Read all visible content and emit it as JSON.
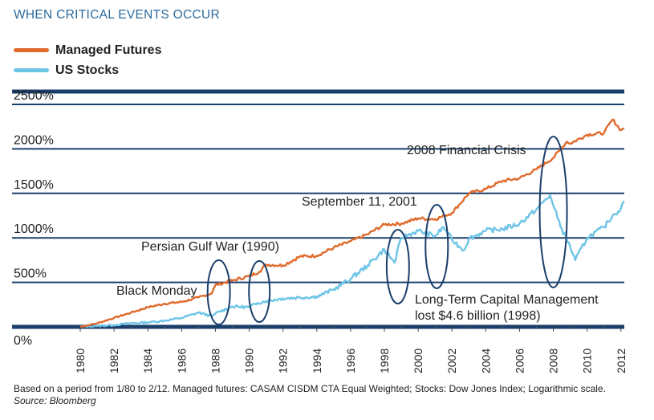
{
  "header": {
    "title": "WHEN CRITICAL EVENTS OCCUR"
  },
  "colors": {
    "managed_futures": "#e06a2c",
    "us_stocks": "#6ec5e6",
    "grid": "#1a3f6b",
    "annotation": "#1a3f6b"
  },
  "footnote": {
    "text": "Based on a period from 1/80 to 2/12. Managed futures: CASAM CISDM CTA Equal Weighted; Stocks: Dow Jones Index; Logarithmic scale.",
    "source": "Source: Bloomberg"
  },
  "chart_data": {
    "type": "line",
    "title": "WHEN CRITICAL EVENTS OCCUR",
    "xlabel": "",
    "ylabel": "",
    "xlim": [
      1980,
      2012.2
    ],
    "ylim": [
      0,
      2500
    ],
    "yticks": [
      "0%",
      "500%",
      "1000%",
      "1500%",
      "2000%",
      "2500%"
    ],
    "ytick_values": [
      0,
      500,
      1000,
      1500,
      2000,
      2500
    ],
    "xticks": [
      "1980",
      "1982",
      "1984",
      "1986",
      "1988",
      "1990",
      "1992",
      "1994",
      "1996",
      "1998",
      "2000",
      "2002",
      "2004",
      "2006",
      "2008",
      "2010",
      "2012"
    ],
    "xtick_values": [
      1980,
      1982,
      1984,
      1986,
      1988,
      1990,
      1992,
      1994,
      1996,
      1998,
      2000,
      2002,
      2004,
      2006,
      2008,
      2010,
      2012
    ],
    "grid": "horizontal",
    "legend": "top-left",
    "series": [
      {
        "name": "Managed Futures",
        "x": [
          1980,
          1981,
          1982,
          1983,
          1984,
          1985,
          1986,
          1987,
          1987.8,
          1988,
          1989,
          1990,
          1990.6,
          1991,
          1992,
          1993,
          1994,
          1995,
          1996,
          1997,
          1998,
          1999,
          2000,
          2001,
          2002,
          2003,
          2004,
          2005,
          2006,
          2007,
          2008,
          2008.8,
          2009,
          2010,
          2011,
          2011.5,
          2012,
          2012.2
        ],
        "values": [
          0,
          40,
          100,
          160,
          220,
          260,
          280,
          330,
          380,
          470,
          520,
          570,
          620,
          700,
          690,
          790,
          800,
          890,
          960,
          1040,
          1150,
          1160,
          1220,
          1210,
          1280,
          1500,
          1550,
          1640,
          1670,
          1770,
          1900,
          2080,
          2060,
          2160,
          2180,
          2330,
          2210,
          2230
        ]
      },
      {
        "name": "US Stocks",
        "x": [
          1980,
          1981,
          1982,
          1983,
          1984,
          1985,
          1986,
          1987,
          1987.8,
          1988,
          1989,
          1990,
          1990.5,
          1991,
          1992,
          1993,
          1994,
          1995,
          1996,
          1997,
          1998,
          1998.6,
          1999,
          2000,
          2001,
          2001.5,
          2002,
          2002.7,
          2003,
          2004,
          2005,
          2006,
          2007,
          2007.8,
          2008,
          2008.5,
          2009,
          2009.3,
          2010,
          2011,
          2011.5,
          2012,
          2012.2
        ],
        "values": [
          0,
          10,
          20,
          40,
          50,
          70,
          100,
          160,
          120,
          150,
          230,
          220,
          270,
          290,
          320,
          330,
          340,
          420,
          540,
          690,
          870,
          720,
          1000,
          1080,
          1020,
          1120,
          980,
          860,
          990,
          1080,
          1100,
          1160,
          1320,
          1480,
          1360,
          1100,
          900,
          750,
          1000,
          1120,
          1250,
          1330,
          1410
        ]
      }
    ],
    "annotations": [
      {
        "label": "Black Monday",
        "year": 1987.8
      },
      {
        "label": "Persian Gulf War (1990)",
        "year": 1990.6
      },
      {
        "label": "September 11, 2001",
        "year": 2001.2
      },
      {
        "label": "Long-Term Capital Management",
        "label2": "lost $4.6 billion (1998)",
        "year": 1998.5
      },
      {
        "label": "2008 Financial Crisis",
        "year": 2008.0
      }
    ]
  }
}
